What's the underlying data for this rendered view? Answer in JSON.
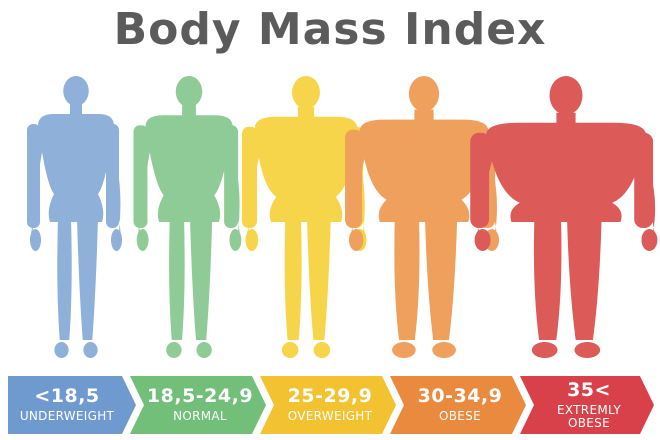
{
  "title": "Body Mass Index",
  "categories": [
    {
      "range": "<18,5",
      "label": "UNDERWEIGHT",
      "color": "#8fb0d8",
      "bar_color": "#6f9ad0"
    },
    {
      "range": "18,5-24,9",
      "label": "NORMAL",
      "color": "#8fcb96",
      "bar_color": "#71bf79"
    },
    {
      "range": "25-29,9",
      "label": "OVERWEIGHT",
      "color": "#f7d54a",
      "bar_color": "#f2c230"
    },
    {
      "range": "30-34,9",
      "label": "OBESE",
      "color": "#eea05c",
      "bar_color": "#e98a3f"
    },
    {
      "range": "35<",
      "label": "EXTREMLY OBESE",
      "color": "#dc5a57",
      "bar_color": "#d9414a"
    }
  ]
}
